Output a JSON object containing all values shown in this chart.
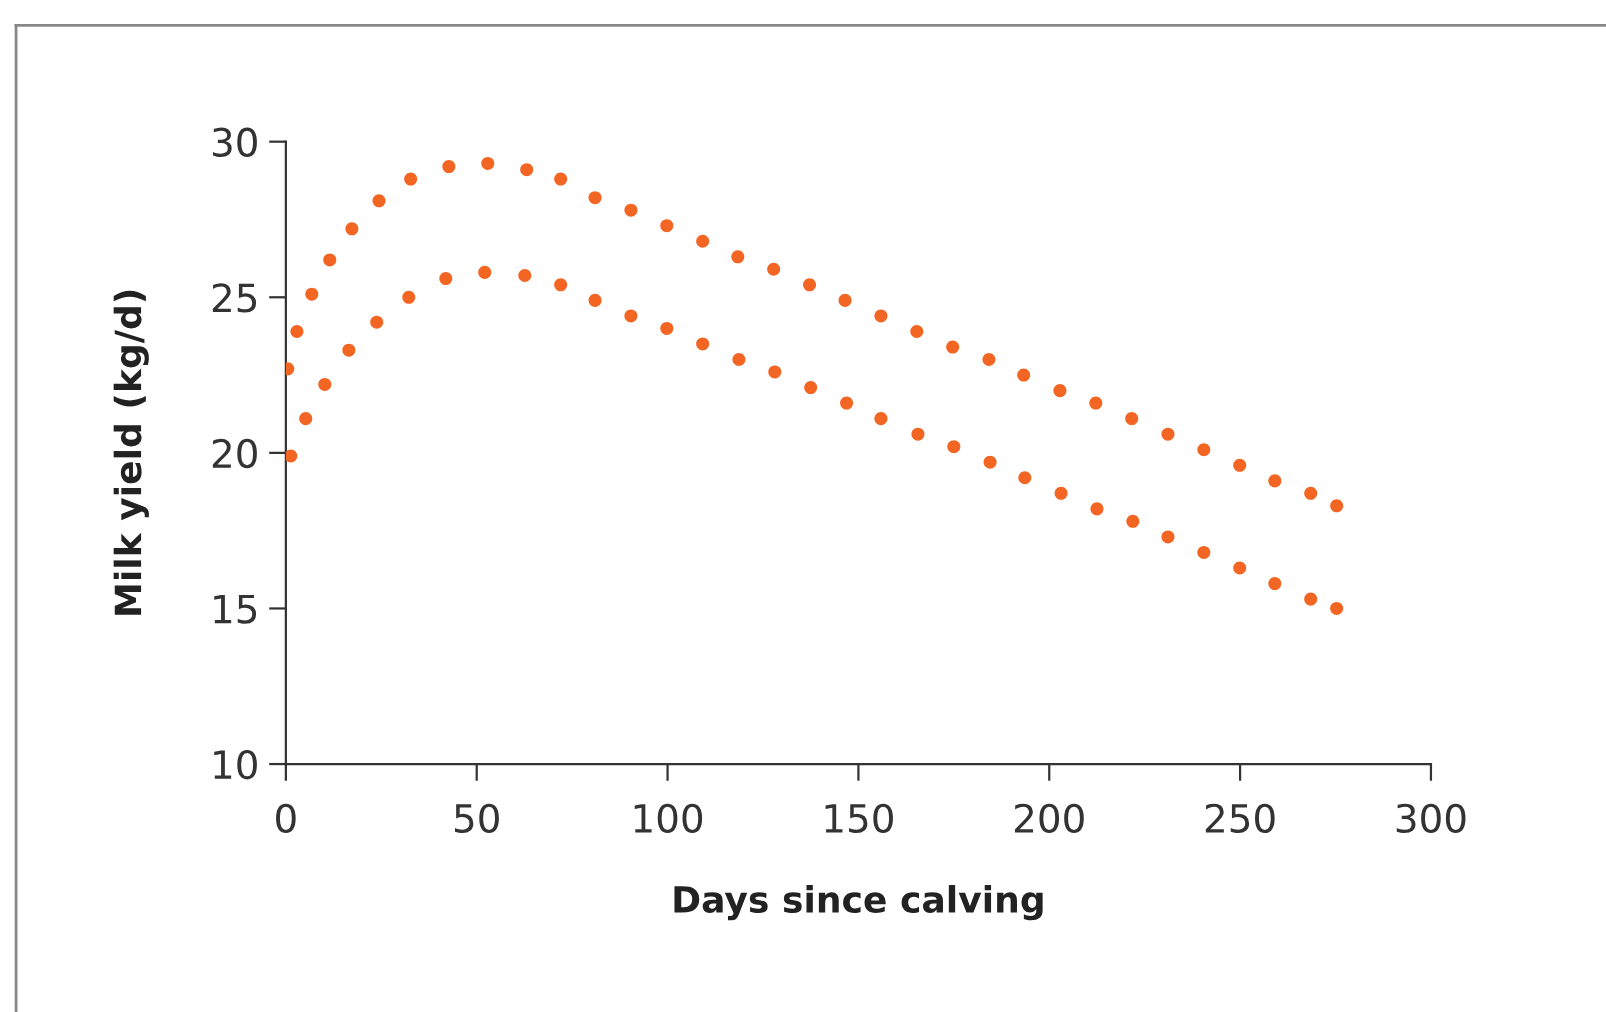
{
  "chart_data": {
    "type": "scatter",
    "xlabel": "Days since calving",
    "ylabel": "Milk yield (kg/d)",
    "xlim": [
      0,
      300
    ],
    "ylim": [
      10,
      30
    ],
    "xticks": [
      0,
      50,
      100,
      150,
      200,
      250,
      300
    ],
    "yticks": [
      10,
      15,
      20,
      25,
      30
    ],
    "grid": false,
    "legend": false,
    "marker": "circle",
    "series": [
      {
        "color": "#f26522",
        "x": [
          0.5,
          2.9,
          6.8,
          11.5,
          17.3,
          24.4,
          32.7,
          42.7,
          52.9,
          63.1,
          72.0,
          81.0,
          90.4,
          99.8,
          109.2,
          118.4,
          127.8,
          137.2,
          146.5,
          155.9,
          165.3,
          174.7,
          184.2,
          193.3,
          202.8,
          212.2,
          221.6,
          231.1,
          240.5,
          249.9,
          259.1,
          268.5,
          275.3
        ],
        "values": [
          22.7,
          23.9,
          25.1,
          26.2,
          27.2,
          28.1,
          28.8,
          29.2,
          29.3,
          29.1,
          28.8,
          28.2,
          27.8,
          27.3,
          26.8,
          26.3,
          25.9,
          25.4,
          24.9,
          24.4,
          23.9,
          23.4,
          23.0,
          22.5,
          22.0,
          21.6,
          21.1,
          20.6,
          20.1,
          19.6,
          19.1,
          18.7,
          18.3
        ]
      },
      {
        "color": "#f26522",
        "x": [
          1.3,
          5.2,
          10.2,
          16.5,
          23.8,
          32.2,
          41.9,
          52.1,
          62.6,
          72.0,
          81.0,
          90.4,
          99.8,
          109.2,
          118.7,
          128.1,
          137.5,
          146.9,
          155.9,
          165.6,
          175.0,
          184.5,
          193.6,
          203.1,
          212.5,
          221.9,
          231.1,
          240.5,
          249.9,
          259.1,
          268.5,
          275.3
        ],
        "values": [
          19.9,
          21.1,
          22.2,
          23.3,
          24.2,
          25.0,
          25.6,
          25.8,
          25.7,
          25.4,
          24.9,
          24.4,
          24.0,
          23.5,
          23.0,
          22.6,
          22.1,
          21.6,
          21.1,
          20.6,
          20.2,
          19.7,
          19.2,
          18.7,
          18.2,
          17.8,
          17.3,
          16.8,
          16.3,
          15.8,
          15.3,
          15.0
        ]
      }
    ]
  }
}
